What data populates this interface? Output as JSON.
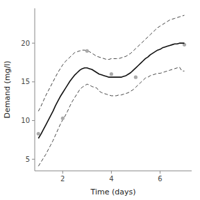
{
  "chart_data": {
    "type": "scatter",
    "xlabel": "Time (days)",
    "ylabel": "Demand (mg/l)",
    "xlim": [
      0.85,
      7.3
    ],
    "ylim": [
      3.5,
      24.5
    ],
    "xticks": [
      2,
      4,
      6
    ],
    "yticks": [
      5,
      10,
      15,
      20
    ],
    "grid": false,
    "series": [
      {
        "type": "line",
        "color": "#444444",
        "line_style": "dashed",
        "x": [
          1.0,
          1.1,
          1.2,
          1.3,
          1.4,
          1.5,
          1.6,
          1.7,
          1.8,
          1.9,
          2.0,
          2.1,
          2.2,
          2.3,
          2.4,
          2.5,
          2.6,
          2.7,
          2.8,
          2.9,
          3.0,
          3.1,
          3.2,
          3.3,
          3.4,
          3.5,
          3.6,
          3.7,
          3.8,
          3.9,
          4.0,
          4.1,
          4.2,
          4.3,
          4.4,
          4.5,
          4.6,
          4.7,
          4.8,
          4.9,
          5.0,
          5.1,
          5.2,
          5.3,
          5.4,
          5.5,
          5.6,
          5.7,
          5.8,
          5.9,
          6.0,
          6.1,
          6.2,
          6.3,
          6.4,
          6.5,
          6.6,
          6.7,
          6.8,
          6.9,
          7.0
        ],
        "values": [
          11.2,
          11.8,
          12.5,
          13.2,
          13.8,
          14.4,
          15.0,
          15.6,
          16.2,
          16.7,
          17.2,
          17.6,
          17.9,
          18.2,
          18.5,
          18.8,
          18.9,
          19.0,
          19.1,
          19.1,
          19.0,
          18.9,
          18.7,
          18.5,
          18.3,
          18.2,
          18.1,
          18.0,
          17.9,
          17.9,
          18.0,
          18.0,
          18.0,
          18.0,
          18.1,
          18.2,
          18.3,
          18.5,
          18.7,
          19.0,
          19.3,
          19.6,
          19.9,
          20.2,
          20.5,
          20.8,
          21.1,
          21.4,
          21.7,
          22.0,
          22.2,
          22.4,
          22.6,
          22.8,
          23.0,
          23.1,
          23.2,
          23.3,
          23.4,
          23.5,
          23.6
        ]
      },
      {
        "type": "line",
        "color": "#444444",
        "line_style": "dashed",
        "x": [
          1.0,
          1.1,
          1.2,
          1.3,
          1.4,
          1.5,
          1.6,
          1.7,
          1.8,
          1.9,
          2.0,
          2.1,
          2.2,
          2.3,
          2.4,
          2.5,
          2.6,
          2.7,
          2.8,
          2.9,
          3.0,
          3.1,
          3.2,
          3.3,
          3.4,
          3.5,
          3.6,
          3.7,
          3.8,
          3.9,
          4.0,
          4.1,
          4.2,
          4.3,
          4.4,
          4.5,
          4.6,
          4.7,
          4.8,
          4.9,
          5.0,
          5.1,
          5.2,
          5.3,
          5.4,
          5.5,
          5.6,
          5.7,
          5.8,
          5.9,
          6.0,
          6.1,
          6.2,
          6.3,
          6.4,
          6.5,
          6.6,
          6.7,
          6.8,
          6.9,
          7.0
        ],
        "values": [
          4.1,
          4.6,
          5.1,
          5.6,
          6.2,
          6.8,
          7.4,
          8.1,
          8.8,
          9.5,
          10.1,
          10.6,
          11.2,
          11.9,
          12.5,
          13.0,
          13.5,
          14.0,
          14.3,
          14.5,
          14.7,
          14.6,
          14.4,
          14.3,
          14.2,
          13.8,
          13.6,
          13.5,
          13.4,
          13.3,
          13.2,
          13.2,
          13.2,
          13.3,
          13.3,
          13.4,
          13.5,
          13.6,
          13.8,
          14.0,
          14.3,
          14.6,
          14.9,
          15.2,
          15.5,
          15.6,
          15.8,
          15.9,
          16.0,
          16.1,
          16.1,
          16.2,
          16.3,
          16.4,
          16.5,
          16.6,
          16.7,
          16.8,
          16.9,
          16.4,
          16.4
        ]
      },
      {
        "type": "scatter",
        "color": "#aaaaaa",
        "x": [
          1,
          2,
          3,
          4,
          5,
          7
        ],
        "values": [
          8.3,
          10.3,
          19.0,
          16.0,
          15.6,
          19.8
        ]
      },
      {
        "type": "line",
        "color": "#111111",
        "line_style": "solid",
        "x": [
          1.0,
          1.1,
          1.2,
          1.3,
          1.4,
          1.5,
          1.6,
          1.7,
          1.8,
          1.9,
          2.0,
          2.1,
          2.2,
          2.3,
          2.4,
          2.5,
          2.6,
          2.7,
          2.8,
          2.9,
          3.0,
          3.1,
          3.2,
          3.3,
          3.4,
          3.5,
          3.6,
          3.7,
          3.8,
          3.9,
          4.0,
          4.1,
          4.2,
          4.3,
          4.4,
          4.5,
          4.6,
          4.7,
          4.8,
          4.9,
          5.0,
          5.1,
          5.2,
          5.3,
          5.4,
          5.5,
          5.6,
          5.7,
          5.8,
          5.9,
          6.0,
          6.1,
          6.2,
          6.3,
          6.4,
          6.5,
          6.6,
          6.7,
          6.8,
          6.9,
          7.0
        ],
        "values": [
          7.7,
          8.2,
          8.8,
          9.4,
          10.0,
          10.6,
          11.2,
          11.9,
          12.5,
          13.1,
          13.6,
          14.1,
          14.6,
          15.1,
          15.5,
          15.9,
          16.2,
          16.5,
          16.7,
          16.8,
          16.8,
          16.7,
          16.6,
          16.4,
          16.2,
          16.0,
          15.9,
          15.8,
          15.7,
          15.6,
          15.6,
          15.6,
          15.6,
          15.6,
          15.6,
          15.7,
          15.8,
          16.0,
          16.2,
          16.5,
          16.8,
          17.1,
          17.4,
          17.7,
          18.0,
          18.2,
          18.5,
          18.7,
          18.9,
          19.1,
          19.2,
          19.4,
          19.5,
          19.6,
          19.7,
          19.8,
          19.9,
          19.9,
          20.0,
          20.0,
          20.0
        ]
      }
    ]
  }
}
